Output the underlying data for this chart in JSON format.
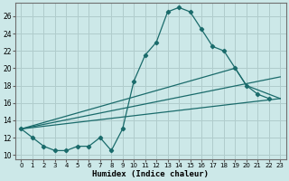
{
  "xlabel": "Humidex (Indice chaleur)",
  "line1_x": [
    0,
    1,
    2,
    3,
    4,
    5,
    6,
    7,
    8,
    9,
    10,
    11,
    12,
    13,
    14,
    15,
    16,
    17,
    18,
    19,
    20,
    21,
    22
  ],
  "line1_y": [
    13,
    12,
    11,
    10.5,
    10.5,
    11,
    11,
    12,
    10.5,
    13,
    18.5,
    21.5,
    23,
    26.5,
    27,
    26.5,
    24.5,
    22.5,
    22,
    20,
    18,
    17,
    16.5
  ],
  "line2_x": [
    0,
    19,
    20,
    22,
    23
  ],
  "line2_y": [
    13,
    20,
    18,
    17,
    16.5
  ],
  "line3_x": [
    0,
    23
  ],
  "line3_y": [
    13,
    19
  ],
  "line4_x": [
    0,
    23
  ],
  "line4_y": [
    13,
    16.5
  ],
  "bg_color": "#cce8e8",
  "grid_color": "#b0cccc",
  "line_color": "#1a6b6b",
  "ylim": [
    9.5,
    27.5
  ],
  "xlim": [
    -0.5,
    23.5
  ],
  "yticks": [
    10,
    12,
    14,
    16,
    18,
    20,
    22,
    24,
    26
  ],
  "xticks": [
    0,
    1,
    2,
    3,
    4,
    5,
    6,
    7,
    8,
    9,
    10,
    11,
    12,
    13,
    14,
    15,
    16,
    17,
    18,
    19,
    20,
    21,
    22,
    23
  ]
}
